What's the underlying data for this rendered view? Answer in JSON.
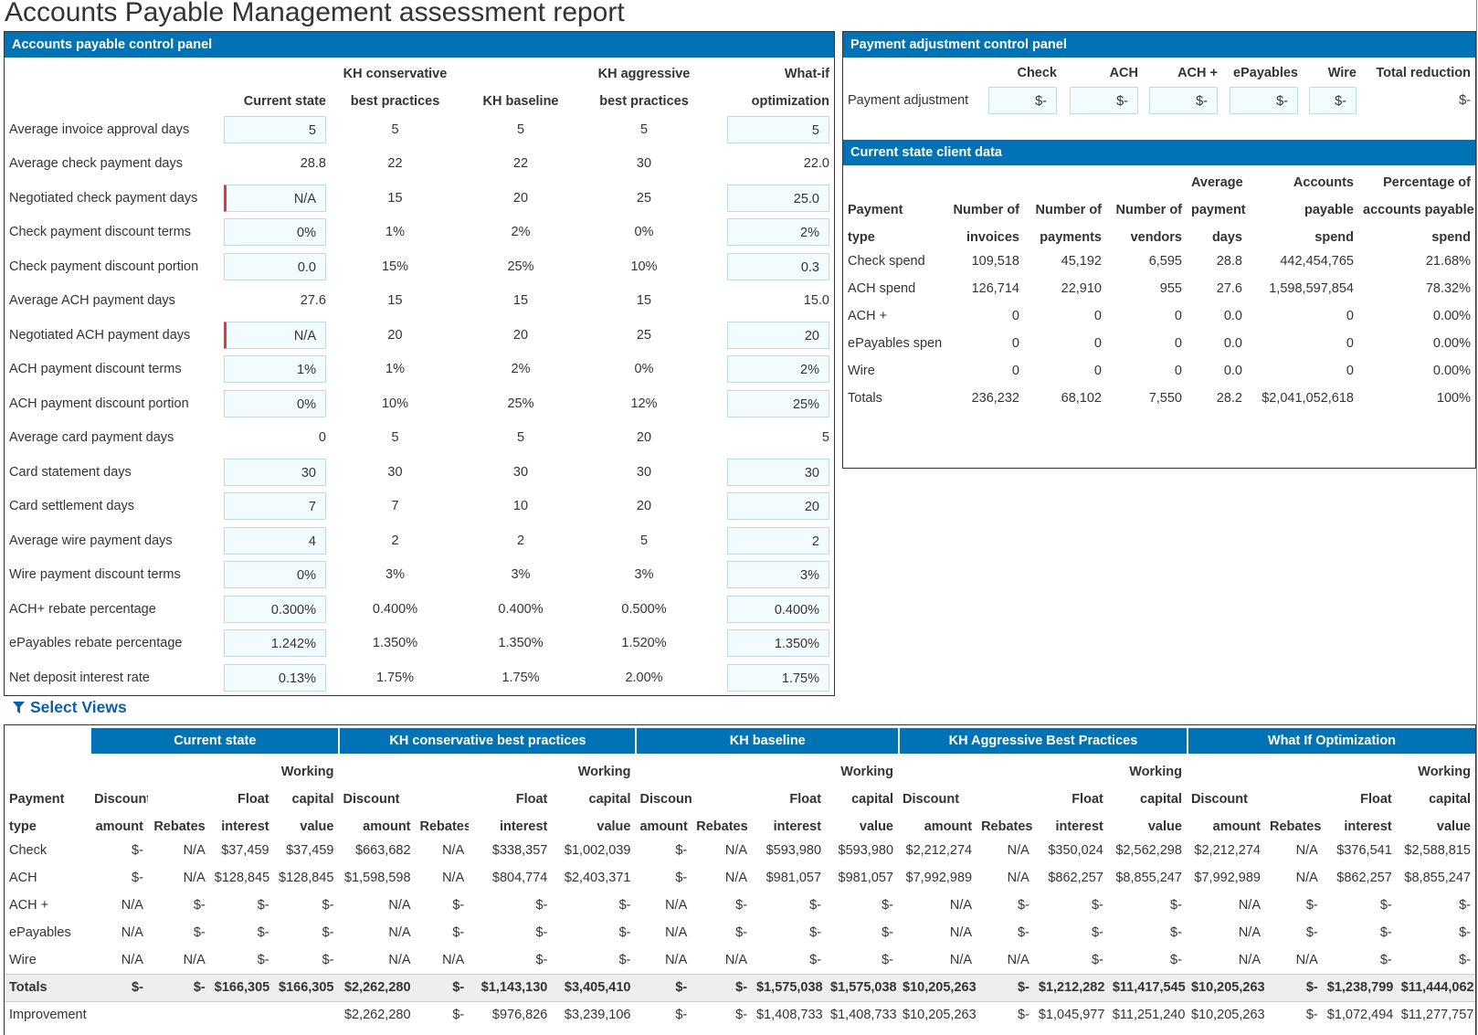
{
  "page": {
    "title": "Accounts Payable Management assessment report"
  },
  "control_panel": {
    "title": "Accounts payable control panel",
    "col_headers": [
      {
        "line1": "",
        "line2": "Current state"
      },
      {
        "line1": "KH conservative",
        "line2": "best practices"
      },
      {
        "line1": "",
        "line2": "KH baseline"
      },
      {
        "line1": "KH aggressive",
        "line2": "best practices"
      },
      {
        "line1": "What-if",
        "line2": "optimization"
      }
    ],
    "rows": [
      {
        "label": "Average invoice approval days",
        "current": "5",
        "current_input": true,
        "current_error": false,
        "cons": "5",
        "base": "5",
        "aggr": "5",
        "whatif": "5",
        "whatif_input": true
      },
      {
        "label": "Average check payment days",
        "current": "28.8",
        "current_input": false,
        "current_error": false,
        "cons": "22",
        "base": "22",
        "aggr": "30",
        "whatif": "22.0",
        "whatif_input": false
      },
      {
        "label": "Negotiated check payment days",
        "current": "N/A",
        "current_input": true,
        "current_error": true,
        "cons": "15",
        "base": "20",
        "aggr": "25",
        "whatif": "25.0",
        "whatif_input": true
      },
      {
        "label": "Check payment discount terms",
        "current": "0%",
        "current_input": true,
        "current_error": false,
        "cons": "1%",
        "base": "2%",
        "aggr": "0%",
        "whatif": "2%",
        "whatif_input": true
      },
      {
        "label": "Check payment discount portion",
        "current": "0.0",
        "current_input": true,
        "current_error": false,
        "cons": "15%",
        "base": "25%",
        "aggr": "10%",
        "whatif": "0.3",
        "whatif_input": true
      },
      {
        "label": "Average ACH payment days",
        "current": "27.6",
        "current_input": false,
        "current_error": false,
        "cons": "15",
        "base": "15",
        "aggr": "15",
        "whatif": "15.0",
        "whatif_input": false
      },
      {
        "label": "Negotiated ACH payment days",
        "current": "N/A",
        "current_input": true,
        "current_error": true,
        "cons": "20",
        "base": "20",
        "aggr": "25",
        "whatif": "20",
        "whatif_input": true
      },
      {
        "label": "ACH payment discount terms",
        "current": "1%",
        "current_input": true,
        "current_error": false,
        "cons": "1%",
        "base": "2%",
        "aggr": "0%",
        "whatif": "2%",
        "whatif_input": true
      },
      {
        "label": "ACH payment discount portion",
        "current": "0%",
        "current_input": true,
        "current_error": false,
        "cons": "10%",
        "base": "25%",
        "aggr": "12%",
        "whatif": "25%",
        "whatif_input": true
      },
      {
        "label": "Average card payment days",
        "current": "0",
        "current_input": false,
        "current_error": false,
        "cons": "5",
        "base": "5",
        "aggr": "20",
        "whatif": "5",
        "whatif_input": false
      },
      {
        "label": "Card statement days",
        "current": "30",
        "current_input": true,
        "current_error": false,
        "cons": "30",
        "base": "30",
        "aggr": "30",
        "whatif": "30",
        "whatif_input": true
      },
      {
        "label": "Card settlement days",
        "current": "7",
        "current_input": true,
        "current_error": false,
        "cons": "7",
        "base": "10",
        "aggr": "20",
        "whatif": "20",
        "whatif_input": true
      },
      {
        "label": "Average wire payment days",
        "current": "4",
        "current_input": true,
        "current_error": false,
        "cons": "2",
        "base": "2",
        "aggr": "5",
        "whatif": "2",
        "whatif_input": true
      },
      {
        "label": "Wire payment discount terms",
        "current": "0%",
        "current_input": true,
        "current_error": false,
        "cons": "3%",
        "base": "3%",
        "aggr": "3%",
        "whatif": "3%",
        "whatif_input": true
      },
      {
        "label": "ACH+ rebate percentage",
        "current": "0.300%",
        "current_input": true,
        "current_error": false,
        "cons": "0.400%",
        "base": "0.400%",
        "aggr": "0.500%",
        "whatif": "0.400%",
        "whatif_input": true
      },
      {
        "label": "ePayables rebate percentage",
        "current": "1.242%",
        "current_input": true,
        "current_error": false,
        "cons": "1.350%",
        "base": "1.350%",
        "aggr": "1.520%",
        "whatif": "1.350%",
        "whatif_input": true
      },
      {
        "label": "Net deposit interest rate",
        "current": "0.13%",
        "current_input": true,
        "current_error": false,
        "cons": "1.75%",
        "base": "1.75%",
        "aggr": "2.00%",
        "whatif": "1.75%",
        "whatif_input": true
      }
    ]
  },
  "payment_adjustment": {
    "title": "Payment adjustment control panel",
    "headers": [
      "Check",
      "ACH",
      "ACH +",
      "ePayables",
      "Wire",
      "Total reduction"
    ],
    "row_label": "Payment adjustment",
    "values": [
      "$-",
      "$-",
      "$-",
      "$-",
      "$-"
    ],
    "total": "$-"
  },
  "client_data": {
    "title": "Current state client data",
    "headers": [
      {
        "l1": "",
        "l2": "Payment",
        "l3": "type"
      },
      {
        "l1": "",
        "l2": "Number of",
        "l3": "invoices"
      },
      {
        "l1": "",
        "l2": "Number of",
        "l3": "payments"
      },
      {
        "l1": "",
        "l2": "Number of",
        "l3": "vendors"
      },
      {
        "l1": "Average",
        "l2": "payment",
        "l3": "days"
      },
      {
        "l1": "Accounts",
        "l2": "payable",
        "l3": "spend"
      },
      {
        "l1": "Percentage of",
        "l2": "accounts payable",
        "l3": "spend"
      }
    ],
    "rows": [
      [
        "Check spend",
        "109,518",
        "45,192",
        "6,595",
        "28.8",
        "442,454,765",
        "21.68%"
      ],
      [
        "ACH spend",
        "126,714",
        "22,910",
        "955",
        "27.6",
        "1,598,597,854",
        "78.32%"
      ],
      [
        "ACH +",
        "0",
        "0",
        "0",
        "0.0",
        "0",
        "0.00%"
      ],
      [
        "ePayables spend",
        "0",
        "0",
        "0",
        "0.0",
        "0",
        "0.00%"
      ],
      [
        "Wire",
        "0",
        "0",
        "0",
        "0.0",
        "0",
        "0.00%"
      ],
      [
        "Totals",
        "236,232",
        "68,102",
        "7,550",
        "28.2",
        "$2,041,052,618",
        "100%"
      ]
    ]
  },
  "select_views": {
    "label": "Select Views"
  },
  "bottom": {
    "groups": [
      "Current state",
      "KH conservative best practices",
      "KH baseline",
      "KH Aggressive Best Practices",
      "What If Optimization"
    ],
    "sub_headers": [
      {
        "l1": "",
        "l2": "Discount",
        "l3": "amount"
      },
      {
        "l1": "",
        "l2": "",
        "l3": "Rebates"
      },
      {
        "l1": "",
        "l2": "Float",
        "l3": "interest"
      },
      {
        "l1": "Working",
        "l2": "capital",
        "l3": "value"
      }
    ],
    "type_header": {
      "l2": "Payment",
      "l3": "type"
    },
    "rows": [
      {
        "label": "Check",
        "vals": [
          "$-",
          "N/A",
          "$37,459",
          "$37,459",
          "$663,682",
          "N/A",
          "$338,357",
          "$1,002,039",
          "$-",
          "N/A",
          "$593,980",
          "$593,980",
          "$2,212,274",
          "N/A",
          "$350,024",
          "$2,562,298",
          "$2,212,274",
          "N/A",
          "$376,541",
          "$2,588,815"
        ]
      },
      {
        "label": "ACH",
        "vals": [
          "$-",
          "N/A",
          "$128,845",
          "$128,845",
          "$1,598,598",
          "N/A",
          "$804,774",
          "$2,403,371",
          "$-",
          "N/A",
          "$981,057",
          "$981,057",
          "$7,992,989",
          "N/A",
          "$862,257",
          "$8,855,247",
          "$7,992,989",
          "N/A",
          "$862,257",
          "$8,855,247"
        ]
      },
      {
        "label": "ACH +",
        "vals": [
          "N/A",
          "$-",
          "$-",
          "$-",
          "N/A",
          "$-",
          "$-",
          "$-",
          "N/A",
          "$-",
          "$-",
          "$-",
          "N/A",
          "$-",
          "$-",
          "$-",
          "N/A",
          "$-",
          "$-",
          "$-"
        ]
      },
      {
        "label": "ePayables",
        "vals": [
          "N/A",
          "$-",
          "$-",
          "$-",
          "N/A",
          "$-",
          "$-",
          "$-",
          "N/A",
          "$-",
          "$-",
          "$-",
          "N/A",
          "$-",
          "$-",
          "$-",
          "N/A",
          "$-",
          "$-",
          "$-"
        ]
      },
      {
        "label": "Wire",
        "vals": [
          "N/A",
          "N/A",
          "$-",
          "$-",
          "N/A",
          "N/A",
          "$-",
          "$-",
          "N/A",
          "N/A",
          "$-",
          "$-",
          "N/A",
          "N/A",
          "$-",
          "$-",
          "N/A",
          "N/A",
          "$-",
          "$-"
        ]
      }
    ],
    "totals": {
      "label": "Totals",
      "vals": [
        "$-",
        "$-",
        "$166,305",
        "$166,305",
        "$2,262,280",
        "$-",
        "$1,143,130",
        "$3,405,410",
        "$-",
        "$-",
        "$1,575,038",
        "$1,575,038",
        "$10,205,263",
        "$-",
        "$1,212,282",
        "$11,417,545",
        "$10,205,263",
        "$-",
        "$1,238,799",
        "$11,444,062"
      ]
    },
    "improvement": {
      "label": "Improvement",
      "vals": [
        "",
        "",
        "",
        "",
        "$2,262,280",
        "$-",
        "$976,826",
        "$3,239,106",
        "$-",
        "$-",
        "$1,408,733",
        "$1,408,733",
        "$10,205,263",
        "$-",
        "$1,045,977",
        "$11,251,240",
        "$10,205,263",
        "$-",
        "$1,072,494",
        "$11,277,757"
      ]
    }
  }
}
